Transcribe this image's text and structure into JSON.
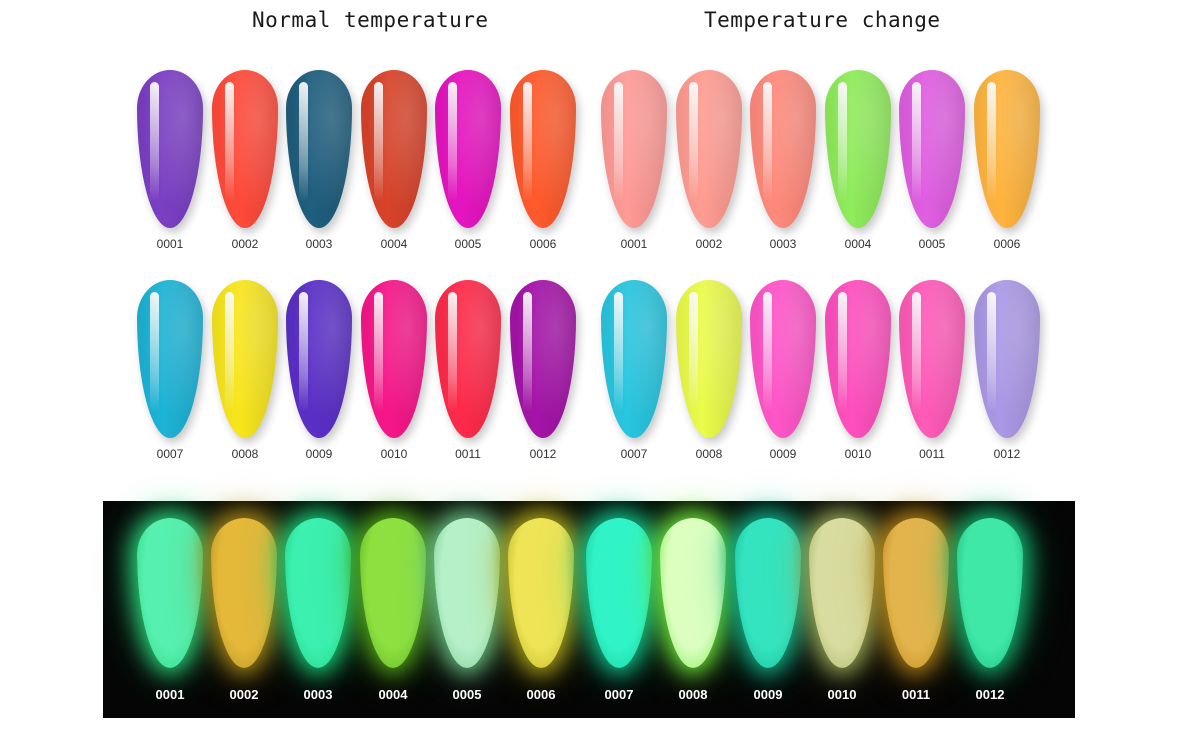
{
  "headings": {
    "left": "Normal temperature",
    "right": "Temperature change"
  },
  "normal_temperature": {
    "row1": [
      {
        "code": "0001",
        "color": "#7b3fc4"
      },
      {
        "code": "0002",
        "color": "#ff4a3a"
      },
      {
        "code": "0003",
        "color": "#1f5e7e"
      },
      {
        "code": "0004",
        "color": "#d8432a"
      },
      {
        "code": "0005",
        "color": "#e614c0"
      },
      {
        "code": "0006",
        "color": "#ff5a2c"
      }
    ],
    "row2": [
      {
        "code": "0007",
        "color": "#1db3d6"
      },
      {
        "code": "0008",
        "color": "#f8e61c"
      },
      {
        "code": "0009",
        "color": "#5a2fc7"
      },
      {
        "code": "0010",
        "color": "#f7168a"
      },
      {
        "code": "0011",
        "color": "#ff2a4a"
      },
      {
        "code": "0012",
        "color": "#a414a8"
      }
    ]
  },
  "temperature_change": {
    "row1": [
      {
        "code": "0001",
        "color": "#ff9a96"
      },
      {
        "code": "0002",
        "color": "#ff9c92"
      },
      {
        "code": "0003",
        "color": "#ff8a7c"
      },
      {
        "code": "0004",
        "color": "#8fec5a"
      },
      {
        "code": "0005",
        "color": "#e05ee2"
      },
      {
        "code": "0006",
        "color": "#ffb43e"
      }
    ],
    "row2": [
      {
        "code": "0007",
        "color": "#28c6e0"
      },
      {
        "code": "0008",
        "color": "#eafb4a"
      },
      {
        "code": "0009",
        "color": "#ff55c8"
      },
      {
        "code": "0010",
        "color": "#ff4fbe"
      },
      {
        "code": "0011",
        "color": "#ff5ab8"
      },
      {
        "code": "0012",
        "color": "#ab98e6"
      }
    ]
  },
  "glow_in_dark": [
    {
      "code": "0001",
      "color": "#56f0b0",
      "halo": "#2bd07a"
    },
    {
      "code": "0002",
      "color": "#e5b83a",
      "halo": "#a88a1a"
    },
    {
      "code": "0003",
      "color": "#3cf0b0",
      "halo": "#1ccc78"
    },
    {
      "code": "0004",
      "color": "#8ee040",
      "halo": "#52a81c"
    },
    {
      "code": "0005",
      "color": "#b6f0c8",
      "halo": "#6cc486"
    },
    {
      "code": "0006",
      "color": "#eee456",
      "halo": "#b0a81c"
    },
    {
      "code": "0007",
      "color": "#30f4c8",
      "halo": "#14c48c"
    },
    {
      "code": "0008",
      "color": "#dcffc0",
      "halo": "#6ce43c"
    },
    {
      "code": "0009",
      "color": "#34e4c0",
      "halo": "#14b48c"
    },
    {
      "code": "0010",
      "color": "#d8dca0",
      "halo": "#9cac58"
    },
    {
      "code": "0011",
      "color": "#e4b44c",
      "halo": "#b48418"
    },
    {
      "code": "0012",
      "color": "#40e8a8",
      "halo": "#16b470"
    }
  ]
}
